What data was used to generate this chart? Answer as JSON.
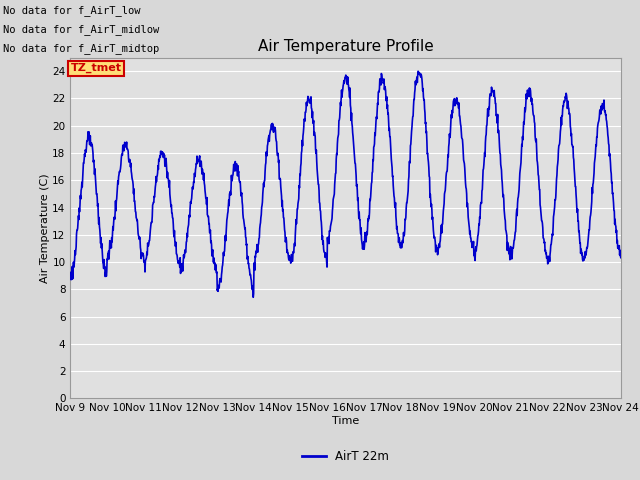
{
  "title": "Air Temperature Profile",
  "xlabel": "Time",
  "ylabel": "Air Temperature (C)",
  "ylim": [
    0,
    25
  ],
  "yticks": [
    0,
    2,
    4,
    6,
    8,
    10,
    12,
    14,
    16,
    18,
    20,
    22,
    24
  ],
  "x_labels": [
    "Nov 9",
    "Nov 10",
    "Nov 11",
    "Nov 12",
    "Nov 13",
    "Nov 14",
    "Nov 15",
    "Nov 16",
    "Nov 17",
    "Nov 18",
    "Nov 19",
    "Nov 20",
    "Nov 21",
    "Nov 22",
    "Nov 23",
    "Nov 24"
  ],
  "line_color": "#0000cc",
  "line_width": 1.2,
  "background_color": "#d8d8d8",
  "plot_bg_color": "#e0e0e0",
  "grid_color": "#ffffff",
  "no_data_texts": [
    "No data for f_AirT_low",
    "No data for f_AirT_midlow",
    "No data for f_AirT_midtop"
  ],
  "legend_label": "AirT 22m",
  "tz_tmet_text": "TZ_tmet",
  "tz_box_color": "#cc0000",
  "tz_box_bg": "#ffdd77",
  "figsize": [
    6.4,
    4.8
  ],
  "dpi": 100
}
